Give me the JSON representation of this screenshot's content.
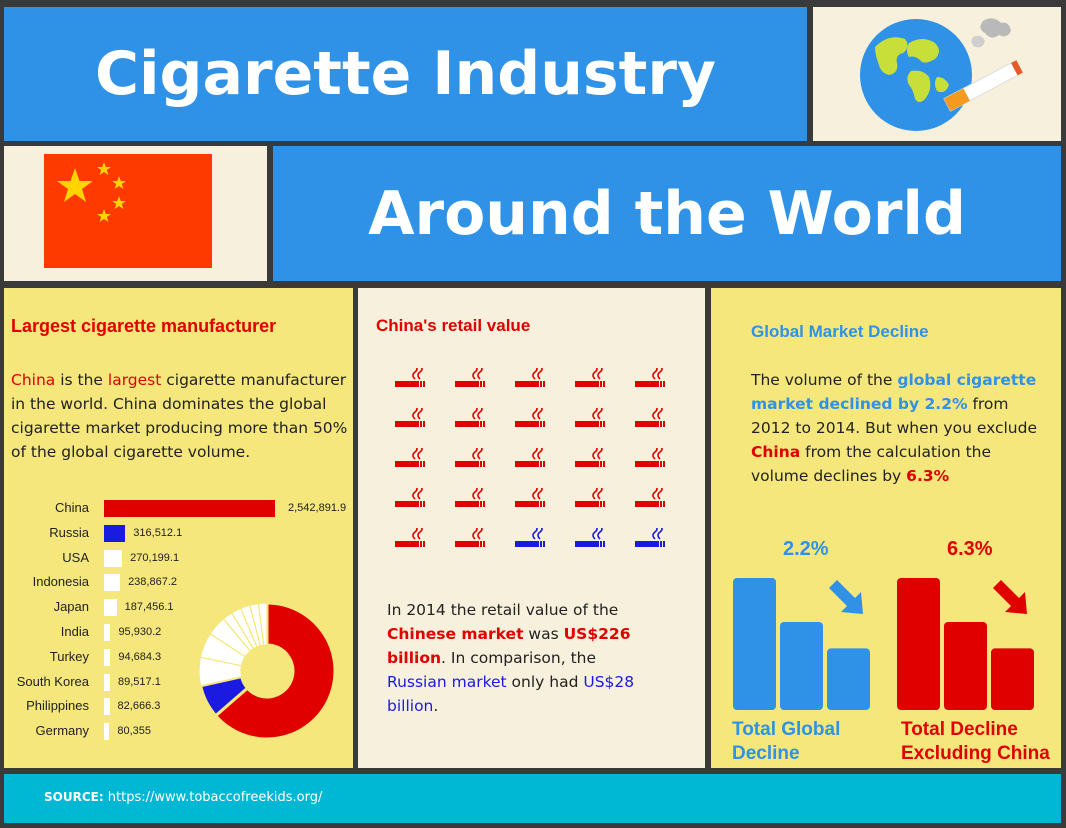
{
  "header": {
    "title_line1": "Cigarette Industry",
    "title_line2": "Around the World"
  },
  "colors": {
    "blue": "#2f92e6",
    "yellow": "#f5e77c",
    "cream": "#f7f0dd",
    "red": "#e00000",
    "navy": "#1a1ae0",
    "teal": "#00b8d4"
  },
  "left_panel": {
    "heading": "Largest cigarette manufacturer",
    "para_w1": "China",
    "para_w2": " is the ",
    "para_w3": "largest",
    "para_w4": " cigarette manufacturer in the world. China dominates the global cigarette market producing more than 50% of the global cigarette volume."
  },
  "chart_data": [
    {
      "type": "bar",
      "orientation": "horizontal",
      "categories": [
        "China",
        "Russia",
        "USA",
        "Indonesia",
        "Japan",
        "India",
        "Turkey",
        "South Korea",
        "Philippines",
        "Germany"
      ],
      "values": [
        2542891.9,
        316512.1,
        270199.1,
        238867.2,
        187456.1,
        95930.2,
        94684.3,
        89517.1,
        82666.3,
        80355
      ],
      "value_labels": [
        "2,542,891.9",
        "316,512.1",
        "270,199.1",
        "238,867.2",
        "187,456.1",
        "95,930.2",
        "94,684.3",
        "89,517.1",
        "82,666.3",
        "80,355"
      ],
      "colors": [
        "#e00000",
        "#1a1ae0",
        "#ffffff",
        "#ffffff",
        "#ffffff",
        "#ffffff",
        "#ffffff",
        "#ffffff",
        "#ffffff",
        "#ffffff"
      ]
    },
    {
      "type": "pie",
      "donut": true,
      "labels": [
        "China",
        "Russia",
        "USA",
        "Indonesia",
        "Japan",
        "India",
        "Turkey",
        "South Korea",
        "Philippines",
        "Germany"
      ],
      "values": [
        2542891.9,
        316512.1,
        270199.1,
        238867.2,
        187456.1,
        95930.2,
        94684.3,
        89517.1,
        82666.3,
        80355
      ],
      "colors": [
        "#e00000",
        "#1a1ae0",
        "#ffffff",
        "#ffffff",
        "#ffffff",
        "#ffffff",
        "#ffffff",
        "#ffffff",
        "#ffffff",
        "#ffffff"
      ]
    },
    {
      "type": "bar",
      "title": "Total Global Decline",
      "value_label": "2.2%",
      "bars": [
        3,
        2,
        1.4
      ],
      "color": "#2f92e6"
    },
    {
      "type": "bar",
      "title": "Total Decline Excluding China",
      "value_label": "6.3%",
      "bars": [
        3,
        2,
        1.4
      ],
      "color": "#e00000"
    }
  ],
  "middle_panel": {
    "heading": "China's retail value",
    "icons_total": 25,
    "icons_red": 22,
    "icons_blue": 3,
    "p1": "In 2014 the retail value of the ",
    "p2": "Chinese market",
    "p3": " was ",
    "p4": "US$226 billion",
    "p5": ". In comparison, the ",
    "p6": "Russian market",
    "p7": " only had ",
    "p8": "US$28 billion",
    "p9": "."
  },
  "right_panel": {
    "heading": "Global Market Decline",
    "t1": "The volume of the ",
    "t2": "global cigarette market declined by 2.2%",
    "t3": " from 2012 to 2014. But when you exclude ",
    "t4": "China",
    "t5": " from the calculation the volume declines by ",
    "t6": "6.3%",
    "pct_global": "2.2%",
    "pct_excl": "6.3%",
    "label_global": "Total Global Decline",
    "label_excl": "Total Decline Excluding China"
  },
  "footer": {
    "source_label": "SOURCE:",
    "source_url": "https://www.tobaccofreekids.org/"
  }
}
